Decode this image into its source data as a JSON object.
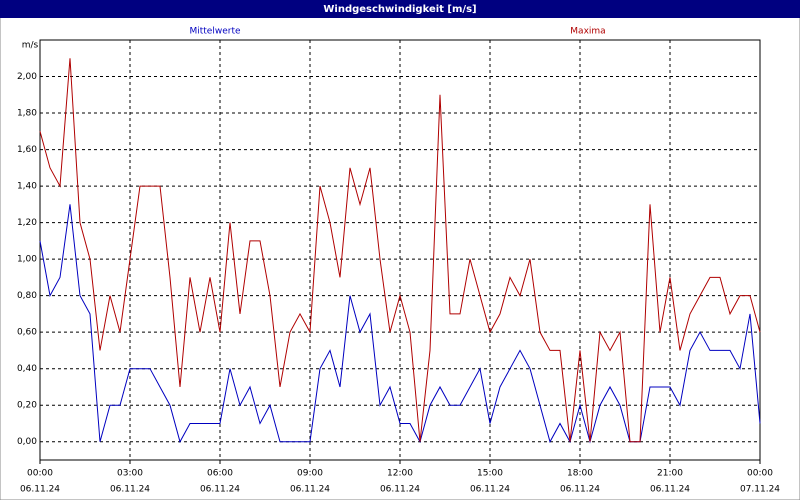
{
  "chart_data": {
    "type": "line",
    "title": "Windgeschwindigkeit [m/s]",
    "y_unit": "m/s",
    "x": [
      0,
      20,
      40,
      60,
      80,
      100,
      120,
      140,
      160,
      180,
      200,
      220,
      240,
      260,
      280,
      300,
      320,
      340,
      360,
      380,
      400,
      420,
      440,
      460,
      480,
      500,
      520,
      540,
      560,
      580,
      600,
      620,
      640,
      660,
      680,
      700,
      720,
      740,
      760,
      780,
      800,
      820,
      840,
      860,
      880,
      900,
      920,
      940,
      960,
      980,
      1000,
      1020,
      1040,
      1060,
      1080,
      1100,
      1120,
      1140,
      1160,
      1180,
      1200,
      1220,
      1240,
      1260,
      1280,
      1300,
      1320,
      1340,
      1360,
      1380,
      1400,
      1420,
      1440
    ],
    "series": [
      {
        "name": "Mittelwerte",
        "color": "#0000c0",
        "values": [
          1.1,
          0.8,
          0.9,
          1.3,
          0.8,
          0.7,
          0.0,
          0.2,
          0.2,
          0.4,
          0.4,
          0.4,
          0.3,
          0.2,
          0.0,
          0.1,
          0.1,
          0.1,
          0.1,
          0.4,
          0.2,
          0.3,
          0.1,
          0.2,
          0.0,
          0.0,
          0.0,
          0.0,
          0.4,
          0.5,
          0.3,
          0.8,
          0.6,
          0.7,
          0.2,
          0.3,
          0.1,
          0.1,
          0.0,
          0.2,
          0.3,
          0.2,
          0.2,
          0.3,
          0.4,
          0.1,
          0.3,
          0.4,
          0.5,
          0.4,
          0.2,
          0.0,
          0.1,
          0.0,
          0.2,
          0.0,
          0.2,
          0.3,
          0.2,
          0.0,
          0.0,
          0.3,
          0.3,
          0.3,
          0.2,
          0.5,
          0.6,
          0.5,
          0.5,
          0.5,
          0.4,
          0.7,
          0.1
        ]
      },
      {
        "name": "Maxima",
        "color": "#b00000",
        "values": [
          1.7,
          1.5,
          1.4,
          2.1,
          1.2,
          1.0,
          0.5,
          0.8,
          0.6,
          1.0,
          1.4,
          1.4,
          1.4,
          0.9,
          0.3,
          0.9,
          0.6,
          0.9,
          0.6,
          1.2,
          0.7,
          1.1,
          1.1,
          0.8,
          0.3,
          0.6,
          0.7,
          0.6,
          1.4,
          1.2,
          0.9,
          1.5,
          1.3,
          1.5,
          1.0,
          0.6,
          0.8,
          0.6,
          0.0,
          0.5,
          1.9,
          0.7,
          0.7,
          1.0,
          0.8,
          0.6,
          0.7,
          0.9,
          0.8,
          1.0,
          0.6,
          0.5,
          0.5,
          0.0,
          0.5,
          0.0,
          0.6,
          0.5,
          0.6,
          0.0,
          0.0,
          1.3,
          0.6,
          0.9,
          0.5,
          0.7,
          0.8,
          0.9,
          0.9,
          0.7,
          0.8,
          0.8,
          0.6
        ]
      }
    ],
    "xlim": [
      0,
      1440
    ],
    "xticks": [
      {
        "value": 0,
        "label": "00:00"
      },
      {
        "value": 180,
        "label": "03:00"
      },
      {
        "value": 360,
        "label": "06:00"
      },
      {
        "value": 540,
        "label": "09:00"
      },
      {
        "value": 720,
        "label": "12:00"
      },
      {
        "value": 900,
        "label": "15:00"
      },
      {
        "value": 1080,
        "label": "18:00"
      },
      {
        "value": 1260,
        "label": "21:00"
      },
      {
        "value": 1440,
        "label": "00:00"
      }
    ],
    "xtick_dates": [
      "06.11.24",
      "06.11.24",
      "06.11.24",
      "06.11.24",
      "06.11.24",
      "06.11.24",
      "06.11.24",
      "06.11.24",
      "07.11.24"
    ],
    "ylim": [
      -0.1,
      2.2
    ],
    "yticks": [
      {
        "value": 0,
        "label": "0,00"
      },
      {
        "value": 0.2,
        "label": "0,20"
      },
      {
        "value": 0.4,
        "label": "0,40"
      },
      {
        "value": 0.6,
        "label": "0,60"
      },
      {
        "value": 0.8,
        "label": "0,80"
      },
      {
        "value": 1.0,
        "label": "1,00"
      },
      {
        "value": 1.2,
        "label": "1,20"
      },
      {
        "value": 1.4,
        "label": "1,40"
      },
      {
        "value": 1.6,
        "label": "1,60"
      },
      {
        "value": 1.8,
        "label": "1,80"
      },
      {
        "value": 2.0,
        "label": "2,00"
      }
    ],
    "grid": true
  }
}
